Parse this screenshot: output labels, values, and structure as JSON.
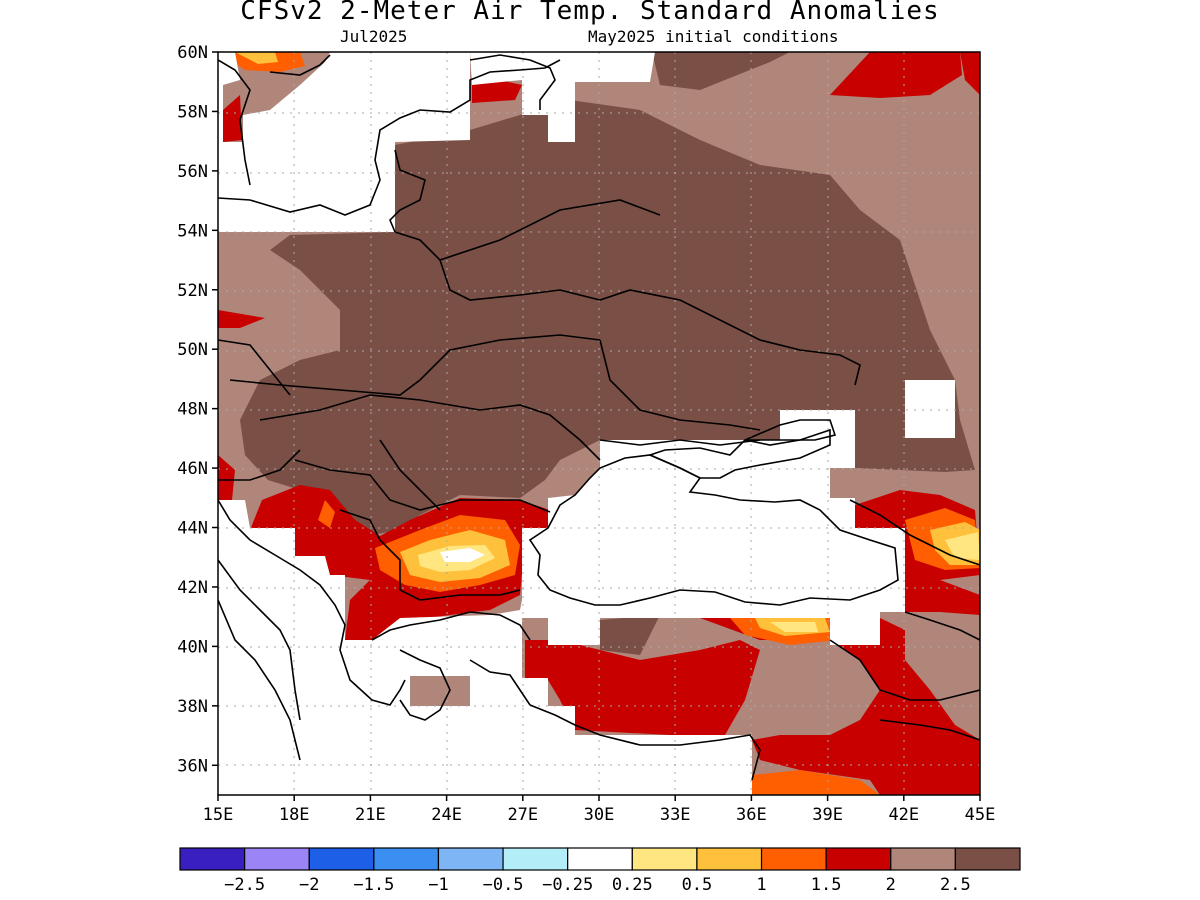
{
  "header": {
    "title": "CFSv2 2-Meter Air Temp. Standard Anomalies",
    "valid_month": "Jul2025",
    "initial_conditions": "May2025 initial conditions"
  },
  "map": {
    "lon_range": [
      15,
      45
    ],
    "lat_range": [
      35,
      60
    ],
    "lat_labels": [
      "60N",
      "58N",
      "56N",
      "54N",
      "52N",
      "50N",
      "48N",
      "46N",
      "44N",
      "42N",
      "40N",
      "38N",
      "36N"
    ],
    "lon_labels": [
      "15E",
      "18E",
      "21E",
      "24E",
      "27E",
      "30E",
      "33E",
      "36E",
      "39E",
      "42E",
      "45E"
    ],
    "region": "Eastern Europe / Black Sea",
    "field": "standardized 2-m air temperature anomaly",
    "dominant_category": "2.5",
    "ocean_masked": true
  },
  "legend": {
    "colors": [
      "#3a1fc0",
      "#9b84f5",
      "#1e5fe8",
      "#3b8ff0",
      "#7eb6f5",
      "#b3eef8",
      "#ffffff",
      "#ffe680",
      "#ffc13c",
      "#ff5f00",
      "#c80000",
      "#b0857a",
      "#7a4f45"
    ],
    "labels": [
      "-2.5",
      "-2",
      "-1.5",
      "-1",
      "-0.5",
      "-0.25",
      "0.25",
      "0.5",
      "1",
      "1.5",
      "2",
      "2.5"
    ]
  }
}
